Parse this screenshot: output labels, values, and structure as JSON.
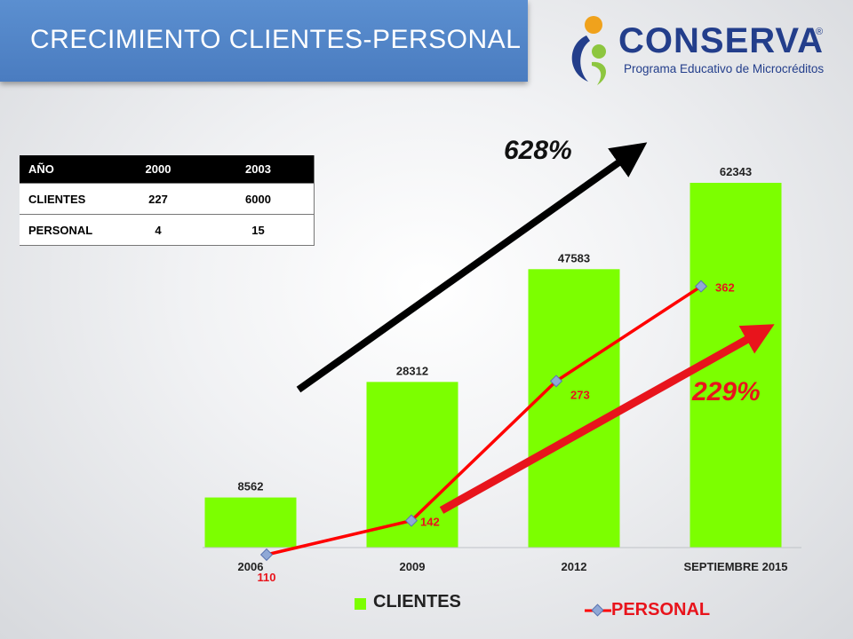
{
  "slide_title": "CRECIMIENTO CLIENTES-PERSONAL",
  "logo": {
    "word": "CONSERVA",
    "reg": "®",
    "subtitle": "Programa Educativo de Microcréditos"
  },
  "table": {
    "headers": [
      "AÑO",
      "2000",
      "2003"
    ],
    "rows": [
      [
        "CLIENTES",
        "227",
        "6000"
      ],
      [
        "PERSONAL",
        "4",
        "15"
      ]
    ]
  },
  "growth": {
    "clientes_pct": "628%",
    "personal_pct": "229%"
  },
  "colors": {
    "bar": "#7cff00",
    "personal_line": "#ff0000",
    "arrow_black": "#000000",
    "arrow_red": "#e8141c",
    "title_bg": "#4f85c6"
  },
  "chart_data": {
    "type": "bar",
    "categories": [
      "2006",
      "2009",
      "2012",
      "SEPTIEMBRE 2015"
    ],
    "series": [
      {
        "name": "CLIENTES",
        "type": "bar",
        "values": [
          8562,
          28312,
          47583,
          62343
        ]
      },
      {
        "name": "PERSONAL",
        "type": "line",
        "values": [
          110,
          142,
          273,
          362
        ]
      }
    ],
    "legend": {
      "placement": "bottom",
      "entries": [
        "CLIENTES",
        "PERSONAL"
      ]
    },
    "grid": false
  }
}
